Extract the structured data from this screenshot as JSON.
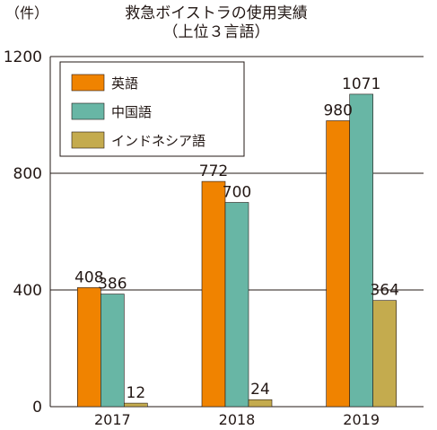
{
  "chart_data": {
    "type": "bar",
    "title": "救急ボイストラの使用実績",
    "subtitle": "（上位３言語）",
    "unit": "（件）",
    "categories": [
      "2017",
      "2018",
      "2019"
    ],
    "series": [
      {
        "name": "英語",
        "color": "#f08300",
        "values": [
          408,
          772,
          980
        ]
      },
      {
        "name": "中国語",
        "color": "#68b6a5",
        "values": [
          386,
          700,
          1071
        ]
      },
      {
        "name": "インドネシア語",
        "color": "#c4ab4e",
        "values": [
          12,
          24,
          364
        ]
      }
    ],
    "ylim": [
      0,
      1200
    ],
    "yticks": [
      0,
      400,
      800,
      1200
    ],
    "grid": true,
    "legend_position": "top-left"
  }
}
